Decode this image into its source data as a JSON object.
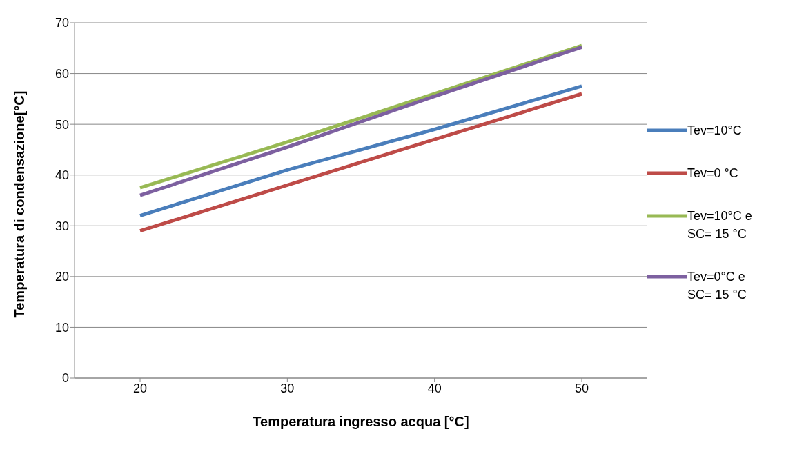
{
  "chart_data": {
    "type": "line",
    "xlabel": "Temperatura ingresso acqua [°C]",
    "ylabel": "Temperatura di condensazione[°C]",
    "categories": [
      "20",
      "30",
      "40",
      "50"
    ],
    "series": [
      {
        "name": "Tev=10°C",
        "color": "#4a7ebb",
        "values": [
          32,
          41,
          49,
          57.5
        ]
      },
      {
        "name": "Tev=0 °C",
        "color": "#be4b48",
        "values": [
          29,
          38,
          47,
          56
        ]
      },
      {
        "name": "Tev=10°C e SC= 15 °C",
        "color": "#98b954",
        "values": [
          37.5,
          46.5,
          56,
          65.5
        ]
      },
      {
        "name": "Tev=0°C e SC= 15 °C",
        "color": "#7d60a0",
        "values": [
          36,
          45.5,
          55.5,
          65.2
        ]
      }
    ],
    "ylim": [
      0,
      70
    ],
    "yticks": [
      0,
      10,
      20,
      30,
      40,
      50,
      60,
      70
    ],
    "grid": "y",
    "legend": "right",
    "marker": "none",
    "line_style": "solid"
  }
}
